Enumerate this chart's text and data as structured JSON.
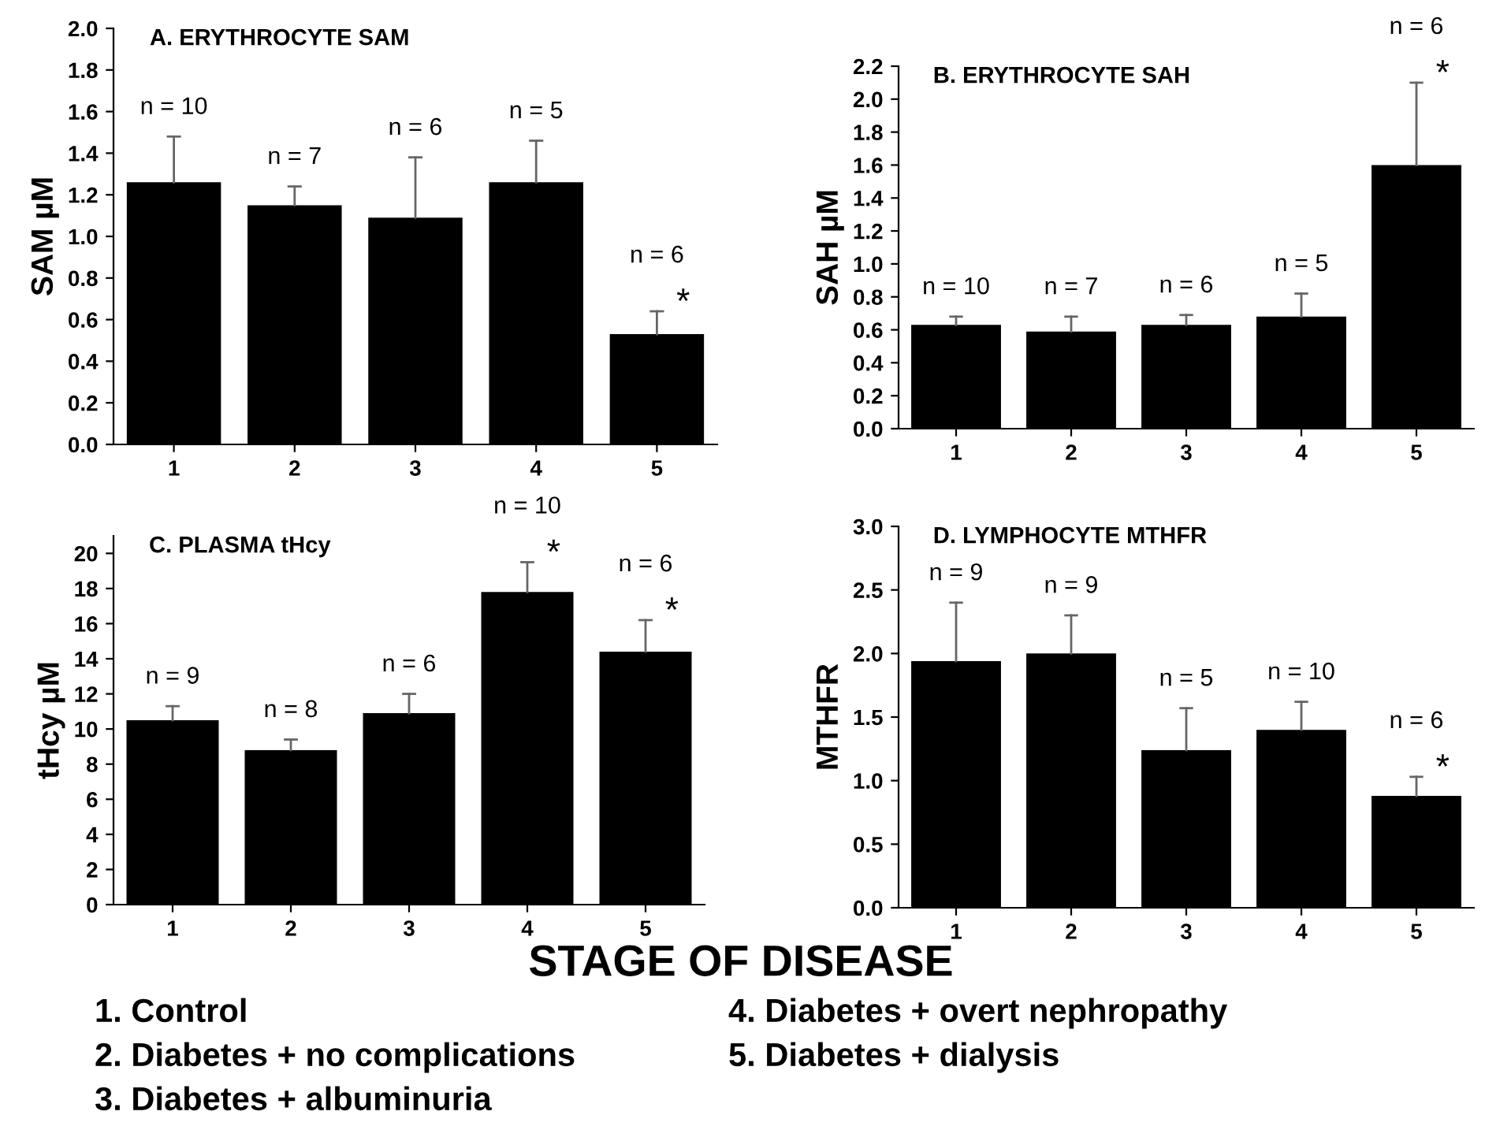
{
  "chart_data": [
    {
      "type": "bar",
      "title": "A. ERYTHROCYTE SAM",
      "ylabel": "SAM µM",
      "categories": [
        "1",
        "2",
        "3",
        "4",
        "5"
      ],
      "series": [
        {
          "color": "#000000",
          "values": [
            1.26,
            1.15,
            1.09,
            1.26,
            0.53
          ],
          "errors": [
            [
              1.26,
              1.48
            ],
            [
              1.15,
              1.24
            ],
            [
              1.09,
              1.38
            ],
            [
              1.26,
              1.46
            ],
            [
              0.53,
              0.64
            ]
          ]
        }
      ],
      "ylim": [
        0,
        2.0
      ],
      "yticks": [
        {
          "value": 0,
          "label": "0.0"
        },
        0.2,
        0.4,
        0.6,
        0.8,
        {
          "value": 1,
          "label": "1.0"
        },
        1.2,
        1.4,
        1.6,
        1.8,
        {
          "value": 2,
          "label": "2.0"
        }
      ],
      "annotations": [
        "n = 10",
        "n = 7",
        "n = 6",
        "n = 5",
        "n = 6",
        {
          "text": "*",
          "x": "5",
          "y": 0.64
        }
      ]
    },
    {
      "type": "bar",
      "title": "B. ERYTHROCYTE SAH",
      "ylabel": "SAH µM",
      "categories": [
        "1",
        "2",
        "3",
        "4",
        "5"
      ],
      "series": [
        {
          "color": "#000000",
          "values": [
            0.63,
            0.59,
            0.63,
            0.68,
            1.6
          ],
          "errors": [
            [
              0.63,
              0.68
            ],
            [
              0.59,
              0.68
            ],
            [
              0.63,
              0.69
            ],
            [
              0.68,
              0.82
            ],
            [
              1.6,
              2.1
            ]
          ]
        }
      ],
      "ylim": [
        0,
        2.2
      ],
      "yticks": [
        {
          "value": 0,
          "label": "0.0"
        },
        0.2,
        0.4,
        0.6,
        0.8,
        {
          "value": 1,
          "label": "1.0"
        },
        1.2,
        1.4,
        1.6,
        1.8,
        {
          "value": 2,
          "label": "2.0"
        },
        2.2
      ],
      "annotations": [
        "n = 10",
        "n = 7",
        "n = 6",
        "n = 5",
        "n = 6",
        {
          "text": "*",
          "x": "5",
          "y": 2.1
        }
      ]
    },
    {
      "type": "bar",
      "title": "C. PLASMA tHcy",
      "ylabel": "tHcy µM",
      "categories": [
        "1",
        "2",
        "3",
        "4",
        "5"
      ],
      "series": [
        {
          "color": "#000000",
          "values": [
            10.5,
            8.8,
            10.9,
            17.8,
            14.4
          ],
          "errors": [
            [
              10.5,
              11.3
            ],
            [
              8.8,
              9.4
            ],
            [
              10.9,
              12.0
            ],
            [
              17.8,
              19.5
            ],
            [
              14.4,
              16.2
            ]
          ]
        }
      ],
      "ylim": [
        0,
        21
      ],
      "yticks": [
        0,
        2,
        4,
        6,
        8,
        10,
        12,
        14,
        16,
        18,
        20
      ],
      "annotations": [
        "n = 9",
        "n = 8",
        "n = 6",
        "n = 10",
        "n = 6",
        {
          "text": "*",
          "x": "4",
          "y": 19.5
        },
        {
          "text": "*",
          "x": "5",
          "y": 16.2
        }
      ]
    },
    {
      "type": "bar",
      "title": "D. LYMPHOCYTE MTHFR",
      "ylabel": "MTHFR",
      "categories": [
        "1",
        "2",
        "3",
        "4",
        "5"
      ],
      "series": [
        {
          "color": "#000000",
          "values": [
            1.94,
            2.0,
            1.24,
            1.4,
            0.88
          ],
          "errors": [
            [
              1.94,
              2.4
            ],
            [
              2.0,
              2.3
            ],
            [
              1.24,
              1.57
            ],
            [
              1.4,
              1.62
            ],
            [
              0.88,
              1.03
            ]
          ]
        }
      ],
      "ylim": [
        0,
        3.0
      ],
      "yticks": [
        {
          "value": 0,
          "label": "0.0"
        },
        0.5,
        {
          "value": 1,
          "label": "1.0"
        },
        1.5,
        {
          "value": 2,
          "label": "2.0"
        },
        2.5,
        {
          "value": 3,
          "label": "3.0"
        }
      ],
      "annotations": [
        "n = 9",
        "n = 9",
        "n = 5",
        "n = 10",
        "n = 6",
        {
          "text": "*",
          "x": "5",
          "y": 1.03
        },
        "STAGE OF DISEASE",
        "1. Control",
        "2. Diabetes + no complications",
        "3. Diabetes + albuminuria",
        "4. Diabetes + overt nephropathy",
        "5. Diabetes + dialysis"
      ]
    }
  ]
}
